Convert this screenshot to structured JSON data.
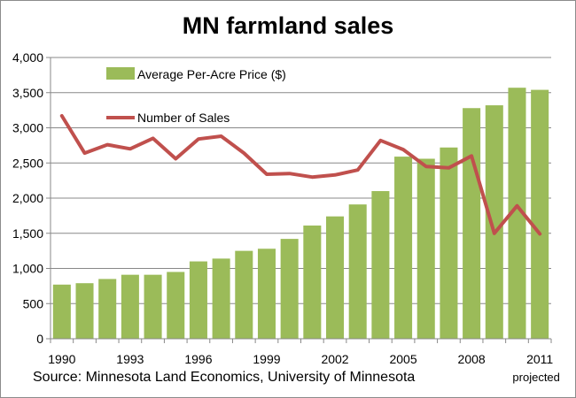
{
  "chart_data": {
    "type": "bar",
    "title": "MN farmland sales",
    "source": "Source: Minnesota Land Economics, University of Minnesota",
    "x": [
      1990,
      1991,
      1992,
      1993,
      1994,
      1995,
      1996,
      1997,
      1998,
      1999,
      2000,
      2001,
      2002,
      2003,
      2004,
      2005,
      2006,
      2007,
      2008,
      2009,
      2010,
      2011
    ],
    "x_tick_labels": [
      "1990",
      "1993",
      "1996",
      "1999",
      "2002",
      "2005",
      "2008",
      "2011"
    ],
    "x_tick_sublabels": {
      "2011": "projected"
    },
    "ylim": [
      0,
      4000
    ],
    "y_ticks": [
      "0",
      "500",
      "1,000",
      "1,500",
      "2,000",
      "2,500",
      "3,000",
      "3,500",
      "4,000"
    ],
    "grid": true,
    "legend_position": "top-left",
    "series": [
      {
        "name": "Average Per-Acre Price ($)",
        "type": "bar",
        "color": "#9bbb59",
        "values": [
          770,
          790,
          850,
          910,
          910,
          950,
          1100,
          1140,
          1250,
          1280,
          1420,
          1610,
          1740,
          1910,
          2100,
          2590,
          2560,
          2720,
          3280,
          3320,
          3570,
          3540
        ]
      },
      {
        "name": "Number of Sales",
        "type": "line",
        "color": "#c0504d",
        "values": [
          3170,
          2640,
          2760,
          2700,
          2850,
          2560,
          2840,
          2880,
          2640,
          2340,
          2350,
          2300,
          2330,
          2400,
          2820,
          2690,
          2450,
          2430,
          2600,
          1500,
          1890,
          1490
        ]
      }
    ]
  }
}
